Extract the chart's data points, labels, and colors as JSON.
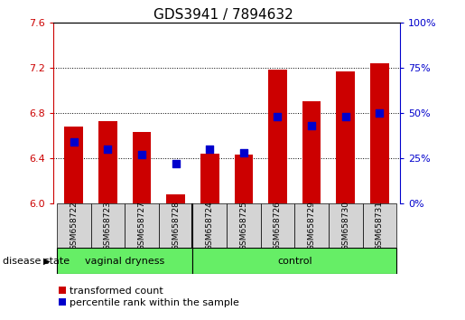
{
  "title": "GDS3941 / 7894632",
  "samples": [
    "GSM658722",
    "GSM658723",
    "GSM658727",
    "GSM658728",
    "GSM658724",
    "GSM658725",
    "GSM658726",
    "GSM658729",
    "GSM658730",
    "GSM658731"
  ],
  "red_values": [
    6.68,
    6.73,
    6.63,
    6.08,
    6.44,
    6.43,
    7.18,
    6.9,
    7.17,
    7.24
  ],
  "blue_percentiles": [
    34,
    30,
    27,
    22,
    30,
    28,
    48,
    43,
    48,
    50
  ],
  "ymin": 6.0,
  "ymax": 7.6,
  "yticks": [
    6.0,
    6.4,
    6.8,
    7.2,
    7.6
  ],
  "right_yticks": [
    0,
    25,
    50,
    75,
    100
  ],
  "bar_color": "#cc0000",
  "blue_color": "#0000cc",
  "group1_label": "vaginal dryness",
  "group2_label": "control",
  "group_bg_color": "#66ee66",
  "legend_red_label": "transformed count",
  "legend_blue_label": "percentile rank within the sample",
  "disease_state_label": "disease state"
}
